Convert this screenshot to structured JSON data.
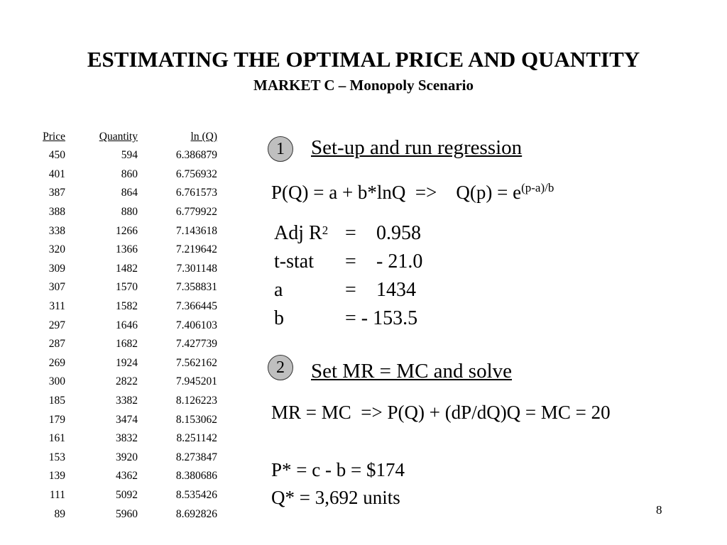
{
  "title": "ESTIMATING THE OPTIMAL PRICE AND QUANTITY",
  "subtitle": "MARKET C – Monopoly Scenario",
  "table": {
    "headers": [
      "Price",
      "Quantity",
      "ln (Q)"
    ],
    "rows": [
      [
        "450",
        "594",
        "6.386879"
      ],
      [
        "401",
        "860",
        "6.756932"
      ],
      [
        "387",
        "864",
        "6.761573"
      ],
      [
        "388",
        "880",
        "6.779922"
      ],
      [
        "338",
        "1266",
        "7.143618"
      ],
      [
        "320",
        "1366",
        "7.219642"
      ],
      [
        "309",
        "1482",
        "7.301148"
      ],
      [
        "307",
        "1570",
        "7.358831"
      ],
      [
        "311",
        "1582",
        "7.366445"
      ],
      [
        "297",
        "1646",
        "7.406103"
      ],
      [
        "287",
        "1682",
        "7.427739"
      ],
      [
        "269",
        "1924",
        "7.562162"
      ],
      [
        "300",
        "2822",
        "7.945201"
      ],
      [
        "185",
        "3382",
        "8.126223"
      ],
      [
        "179",
        "3474",
        "8.153062"
      ],
      [
        "161",
        "3832",
        "8.251142"
      ],
      [
        "153",
        "3920",
        "8.273847"
      ],
      [
        "139",
        "4362",
        "8.380686"
      ],
      [
        "111",
        "5092",
        "8.535426"
      ],
      [
        "89",
        "5960",
        "8.692826"
      ]
    ]
  },
  "step1": {
    "number": "1",
    "heading": "Set-up and run regression",
    "formula_main": "P(Q) = a + b*lnQ  =>    Q(p) = e",
    "formula_exp": "(p-a)/b",
    "stats": [
      {
        "label": "Adj R",
        "sup": "2",
        "eq": "=",
        "value": "0.958"
      },
      {
        "label": "t-stat",
        "sup": "",
        "eq": "=",
        "value": "- 21.0"
      },
      {
        "label": "a",
        "sup": "",
        "eq": "=",
        "value": "1434"
      },
      {
        "label": "b",
        "sup": "",
        "eq": "= - 153.5",
        "value": ""
      }
    ]
  },
  "step2": {
    "number": "2",
    "heading": "Set MR = MC and solve",
    "equation": "MR = MC  => P(Q) + (dP/dQ)Q = MC = 20",
    "price_result": "P* = c - b = $174",
    "quantity_result": "Q* = 3,692 units"
  },
  "page_number": "8"
}
